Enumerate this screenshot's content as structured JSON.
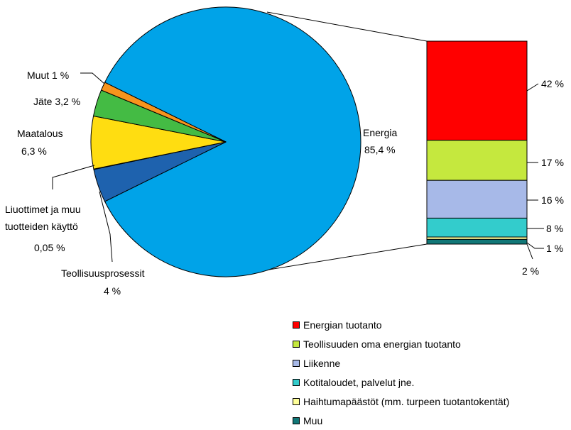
{
  "chart_data": [
    {
      "type": "pie",
      "title": "",
      "slices": [
        {
          "label": "Energia",
          "value_text": "85,4 %",
          "value": 85.4,
          "color": "#00A3E8"
        },
        {
          "label": "Teollisuusprosessit",
          "value_text": "4 %",
          "value": 4.0,
          "color": "#1E62AE"
        },
        {
          "label": "Liuottimet ja muu tuotteiden käyttö",
          "value_text": "0,05 %",
          "value": 0.05,
          "color": "#1E62AE"
        },
        {
          "label": "Maatalous",
          "value_text": "6,3 %",
          "value": 6.3,
          "color": "#FFDD11"
        },
        {
          "label": "Jäte",
          "value_text": "3,2 %",
          "value": 3.2,
          "color": "#44BB44"
        },
        {
          "label": "Muut",
          "value_text": "1 %",
          "value": 1.0,
          "color": "#F7941D"
        }
      ],
      "exploded_slice": "Energia"
    },
    {
      "type": "bar",
      "stacked": true,
      "title": "",
      "segments": [
        {
          "name": "Energian tuotanto",
          "value_text": "42 %",
          "value": 42,
          "color": "#FF0000"
        },
        {
          "name": "Teollisuuden oma energian tuotanto",
          "value_text": "17 %",
          "value": 17,
          "color": "#C5E83E"
        },
        {
          "name": "Liikenne",
          "value_text": "16 %",
          "value": 16,
          "color": "#A7B9E8"
        },
        {
          "name": "Kotitaloudet, palvelut jne.",
          "value_text": "8 %",
          "value": 8,
          "color": "#33CCCC"
        },
        {
          "name": "Haihtumapäästöt (mm. turpeen tuotantokentät)",
          "value_text": "1 %",
          "value": 1,
          "color": "#FFFF99"
        },
        {
          "name": "Muu",
          "value_text": "2 %",
          "value": 2,
          "color": "#117777"
        }
      ],
      "legend_position": "bottom-right"
    }
  ],
  "labels": {
    "energia_name": "Energia",
    "energia_value": "85,4 %",
    "teollisuus_name": "Teollisuusprosessit",
    "teollisuus_value": "4 %",
    "liuottimet_line1": "Liuottimet ja muu",
    "liuottimet_line2": "tuotteiden käyttö",
    "liuottimet_value": "0,05 %",
    "maatalous_name": "Maatalous",
    "maatalous_value": "6,3 %",
    "jate": "Jäte 3,2 %",
    "muut": "Muut 1 %"
  },
  "legend": [
    {
      "label": "Energian tuotanto",
      "color": "#FF0000"
    },
    {
      "label": "Teollisuuden oma energian tuotanto",
      "color": "#C5E83E"
    },
    {
      "label": "Liikenne",
      "color": "#A7B9E8"
    },
    {
      "label": "Kotitaloudet, palvelut jne.",
      "color": "#33CCCC"
    },
    {
      "label": "Haihtumapäästöt (mm. turpeen tuotantokentät)",
      "color": "#FFFF99"
    },
    {
      "label": "Muu",
      "color": "#117777"
    }
  ]
}
